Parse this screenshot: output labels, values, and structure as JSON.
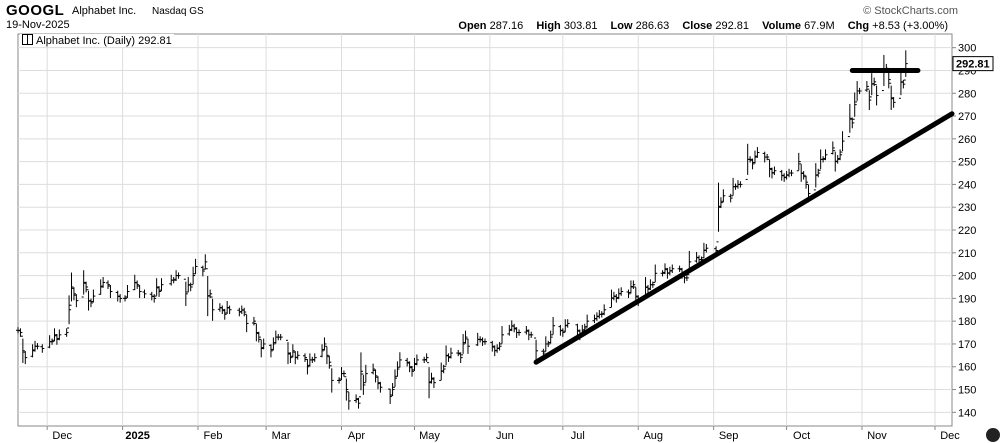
{
  "header": {
    "ticker": "GOOGL",
    "company": "Alphabet Inc.",
    "exchange": "Nasdaq GS",
    "date": "19-Nov-2025",
    "brand": "© StockCharts.com",
    "open_label": "Open",
    "open": "287.16",
    "high_label": "High",
    "high": "303.81",
    "low_label": "Low",
    "low": "286.63",
    "close_label": "Close",
    "close": "292.81",
    "volume_label": "Volume",
    "volume": "67.9M",
    "chg_label": "Chg",
    "chg": "+8.53 (+3.00%)"
  },
  "legend": {
    "text": "Alphabet Inc. (Daily) 292.81"
  },
  "price_tag": "292.81",
  "chart_data": {
    "type": "ohlc",
    "title": "Alphabet Inc. (Daily) 292.81",
    "y_ticks": [
      140,
      150,
      160,
      170,
      180,
      190,
      200,
      210,
      220,
      230,
      240,
      250,
      260,
      270,
      280,
      290,
      300
    ],
    "ylim": [
      134,
      306
    ],
    "x_ticks": [
      "Dec",
      "2025",
      "Feb",
      "Mar",
      "Apr",
      "May",
      "Jun",
      "Jul",
      "Aug",
      "Sep",
      "Oct",
      "Nov",
      "Dec"
    ],
    "xlim": [
      "2024-11-19",
      "2025-12-08"
    ],
    "series": [
      {
        "values": [
          [
            "2024-11-19",
            176
          ],
          [
            "2024-11-20",
            175
          ],
          [
            "2024-11-21",
            167
          ],
          [
            "2024-11-22",
            164
          ],
          [
            "2024-11-25",
            167
          ],
          [
            "2024-11-26",
            169
          ],
          [
            "2024-11-27",
            169
          ],
          [
            "2024-11-29",
            168
          ],
          [
            "2024-12-02",
            171
          ],
          [
            "2024-12-03",
            171
          ],
          [
            "2024-12-04",
            174
          ],
          [
            "2024-12-05",
            172
          ],
          [
            "2024-12-06",
            174
          ],
          [
            "2024-12-09",
            175
          ],
          [
            "2024-12-10",
            185
          ],
          [
            "2024-12-11",
            195
          ],
          [
            "2024-12-12",
            192
          ],
          [
            "2024-12-13",
            189
          ],
          [
            "2024-12-16",
            197
          ],
          [
            "2024-12-17",
            195
          ],
          [
            "2024-12-18",
            189
          ],
          [
            "2024-12-19",
            188
          ],
          [
            "2024-12-20",
            191
          ],
          [
            "2024-12-23",
            195
          ],
          [
            "2024-12-24",
            197
          ],
          [
            "2024-12-26",
            196
          ],
          [
            "2024-12-27",
            193
          ],
          [
            "2024-12-30",
            191
          ],
          [
            "2024-12-31",
            190
          ],
          [
            "2025-01-02",
            190
          ],
          [
            "2025-01-03",
            193
          ],
          [
            "2025-01-06",
            197
          ],
          [
            "2025-01-07",
            196
          ],
          [
            "2025-01-08",
            193
          ],
          [
            "2025-01-10",
            192
          ],
          [
            "2025-01-13",
            191
          ],
          [
            "2025-01-14",
            190
          ],
          [
            "2025-01-15",
            195
          ],
          [
            "2025-01-16",
            193
          ],
          [
            "2025-01-17",
            196
          ],
          [
            "2025-01-21",
            198
          ],
          [
            "2025-01-22",
            198
          ],
          [
            "2025-01-23",
            200
          ],
          [
            "2025-01-24",
            200
          ],
          [
            "2025-01-27",
            192
          ],
          [
            "2025-01-28",
            196
          ],
          [
            "2025-01-29",
            195
          ],
          [
            "2025-01-30",
            200
          ],
          [
            "2025-01-31",
            204
          ],
          [
            "2025-02-03",
            202
          ],
          [
            "2025-02-04",
            206
          ],
          [
            "2025-02-05",
            191
          ],
          [
            "2025-02-06",
            192
          ],
          [
            "2025-02-07",
            185
          ],
          [
            "2025-02-10",
            186
          ],
          [
            "2025-02-11",
            185
          ],
          [
            "2025-02-12",
            183
          ],
          [
            "2025-02-13",
            186
          ],
          [
            "2025-02-14",
            185
          ],
          [
            "2025-02-18",
            184
          ],
          [
            "2025-02-19",
            185
          ],
          [
            "2025-02-20",
            184
          ],
          [
            "2025-02-21",
            179
          ],
          [
            "2025-02-24",
            180
          ],
          [
            "2025-02-25",
            175
          ],
          [
            "2025-02-26",
            173
          ],
          [
            "2025-02-27",
            168
          ],
          [
            "2025-02-28",
            170
          ],
          [
            "2025-03-03",
            167
          ],
          [
            "2025-03-04",
            170
          ],
          [
            "2025-03-05",
            173
          ],
          [
            "2025-03-06",
            173
          ],
          [
            "2025-03-07",
            173
          ],
          [
            "2025-03-10",
            166
          ],
          [
            "2025-03-11",
            164
          ],
          [
            "2025-03-12",
            167
          ],
          [
            "2025-03-13",
            164
          ],
          [
            "2025-03-14",
            165
          ],
          [
            "2025-03-17",
            164
          ],
          [
            "2025-03-18",
            160
          ],
          [
            "2025-03-19",
            163
          ],
          [
            "2025-03-20",
            163
          ],
          [
            "2025-03-21",
            164
          ],
          [
            "2025-03-24",
            167
          ],
          [
            "2025-03-25",
            170
          ],
          [
            "2025-03-26",
            165
          ],
          [
            "2025-03-27",
            162
          ],
          [
            "2025-03-28",
            154
          ],
          [
            "2025-03-31",
            154
          ],
          [
            "2025-04-01",
            157
          ],
          [
            "2025-04-02",
            157
          ],
          [
            "2025-04-03",
            150
          ],
          [
            "2025-04-04",
            145
          ],
          [
            "2025-04-07",
            146
          ],
          [
            "2025-04-08",
            144
          ],
          [
            "2025-04-09",
            158
          ],
          [
            "2025-04-10",
            152
          ],
          [
            "2025-04-11",
            157
          ],
          [
            "2025-04-14",
            159
          ],
          [
            "2025-04-15",
            156
          ],
          [
            "2025-04-16",
            153
          ],
          [
            "2025-04-17",
            151
          ],
          [
            "2025-04-21",
            147
          ],
          [
            "2025-04-22",
            150
          ],
          [
            "2025-04-23",
            155
          ],
          [
            "2025-04-24",
            159
          ],
          [
            "2025-04-25",
            163
          ],
          [
            "2025-04-28",
            162
          ],
          [
            "2025-04-29",
            160
          ],
          [
            "2025-04-30",
            158
          ],
          [
            "2025-05-01",
            161
          ],
          [
            "2025-05-02",
            163
          ],
          [
            "2025-05-05",
            163
          ],
          [
            "2025-05-06",
            164
          ],
          [
            "2025-05-07",
            153
          ],
          [
            "2025-05-08",
            155
          ],
          [
            "2025-05-09",
            153
          ],
          [
            "2025-05-12",
            158
          ],
          [
            "2025-05-13",
            159
          ],
          [
            "2025-05-14",
            165
          ],
          [
            "2025-05-15",
            164
          ],
          [
            "2025-05-16",
            166
          ],
          [
            "2025-05-19",
            166
          ],
          [
            "2025-05-20",
            164
          ],
          [
            "2025-05-21",
            170
          ],
          [
            "2025-05-22",
            173
          ],
          [
            "2025-05-23",
            169
          ],
          [
            "2025-05-27",
            172
          ],
          [
            "2025-05-28",
            172
          ],
          [
            "2025-05-29",
            171
          ],
          [
            "2025-05-30",
            171
          ],
          [
            "2025-06-02",
            169
          ],
          [
            "2025-06-03",
            167
          ],
          [
            "2025-06-04",
            168
          ],
          [
            "2025-06-05",
            169
          ],
          [
            "2025-06-06",
            174
          ],
          [
            "2025-06-09",
            176
          ],
          [
            "2025-06-10",
            178
          ],
          [
            "2025-06-11",
            177
          ],
          [
            "2025-06-12",
            175
          ],
          [
            "2025-06-13",
            175
          ],
          [
            "2025-06-16",
            176
          ],
          [
            "2025-06-17",
            174
          ],
          [
            "2025-06-18",
            174
          ],
          [
            "2025-06-20",
            167
          ],
          [
            "2025-06-23",
            166
          ],
          [
            "2025-06-24",
            170
          ],
          [
            "2025-06-25",
            170
          ],
          [
            "2025-06-26",
            173
          ],
          [
            "2025-06-27",
            178
          ],
          [
            "2025-06-30",
            176
          ],
          [
            "2025-07-01",
            175
          ],
          [
            "2025-07-02",
            178
          ],
          [
            "2025-07-03",
            179
          ],
          [
            "2025-07-07",
            176
          ],
          [
            "2025-07-08",
            174
          ],
          [
            "2025-07-09",
            176
          ],
          [
            "2025-07-10",
            177
          ],
          [
            "2025-07-11",
            180
          ],
          [
            "2025-07-14",
            181
          ],
          [
            "2025-07-15",
            182
          ],
          [
            "2025-07-16",
            183
          ],
          [
            "2025-07-17",
            183
          ],
          [
            "2025-07-18",
            185
          ],
          [
            "2025-07-21",
            190
          ],
          [
            "2025-07-22",
            191
          ],
          [
            "2025-07-23",
            190
          ],
          [
            "2025-07-24",
            192
          ],
          [
            "2025-07-25",
            193
          ],
          [
            "2025-07-28",
            192
          ],
          [
            "2025-07-29",
            195
          ],
          [
            "2025-07-30",
            196
          ],
          [
            "2025-07-31",
            191
          ],
          [
            "2025-08-01",
            189
          ],
          [
            "2025-08-04",
            195
          ],
          [
            "2025-08-05",
            194
          ],
          [
            "2025-08-06",
            196
          ],
          [
            "2025-08-07",
            196
          ],
          [
            "2025-08-08",
            201
          ],
          [
            "2025-08-11",
            201
          ],
          [
            "2025-08-12",
            203
          ],
          [
            "2025-08-13",
            201
          ],
          [
            "2025-08-14",
            202
          ],
          [
            "2025-08-15",
            203
          ],
          [
            "2025-08-18",
            203
          ],
          [
            "2025-08-19",
            201
          ],
          [
            "2025-08-20",
            199
          ],
          [
            "2025-08-21",
            199
          ],
          [
            "2025-08-22",
            206
          ],
          [
            "2025-08-25",
            208
          ],
          [
            "2025-08-26",
            207
          ],
          [
            "2025-08-27",
            207
          ],
          [
            "2025-08-28",
            211
          ],
          [
            "2025-08-29",
            212
          ],
          [
            "2025-09-02",
            211
          ],
          [
            "2025-09-03",
            230
          ],
          [
            "2025-09-04",
            232
          ],
          [
            "2025-09-05",
            235
          ],
          [
            "2025-09-08",
            234
          ],
          [
            "2025-09-09",
            239
          ],
          [
            "2025-09-10",
            239
          ],
          [
            "2025-09-11",
            240
          ],
          [
            "2025-09-12",
            240
          ],
          [
            "2025-09-15",
            251
          ],
          [
            "2025-09-16",
            251
          ],
          [
            "2025-09-17",
            249
          ],
          [
            "2025-09-18",
            252
          ],
          [
            "2025-09-19",
            254
          ],
          [
            "2025-09-22",
            252
          ],
          [
            "2025-09-23",
            252
          ],
          [
            "2025-09-24",
            247
          ],
          [
            "2025-09-25",
            245
          ],
          [
            "2025-09-26",
            246
          ],
          [
            "2025-09-29",
            244
          ],
          [
            "2025-09-30",
            243
          ],
          [
            "2025-10-01",
            244
          ],
          [
            "2025-10-02",
            245
          ],
          [
            "2025-10-03",
            245
          ],
          [
            "2025-10-06",
            250
          ],
          [
            "2025-10-07",
            245
          ],
          [
            "2025-10-08",
            244
          ],
          [
            "2025-10-09",
            241
          ],
          [
            "2025-10-10",
            236
          ],
          [
            "2025-10-13",
            244
          ],
          [
            "2025-10-14",
            245
          ],
          [
            "2025-10-15",
            251
          ],
          [
            "2025-10-16",
            251
          ],
          [
            "2025-10-17",
            253
          ],
          [
            "2025-10-20",
            256
          ],
          [
            "2025-10-21",
            250
          ],
          [
            "2025-10-22",
            251
          ],
          [
            "2025-10-23",
            253
          ],
          [
            "2025-10-24",
            259
          ],
          [
            "2025-10-27",
            269
          ],
          [
            "2025-10-28",
            267
          ],
          [
            "2025-10-29",
            275
          ],
          [
            "2025-10-30",
            281
          ],
          [
            "2025-10-31",
            281
          ],
          [
            "2025-11-03",
            283
          ],
          [
            "2025-11-04",
            277
          ],
          [
            "2025-11-05",
            284
          ],
          [
            "2025-11-06",
            285
          ],
          [
            "2025-11-07",
            279
          ],
          [
            "2025-11-10",
            290
          ],
          [
            "2025-11-11",
            291
          ],
          [
            "2025-11-12",
            286
          ],
          [
            "2025-11-13",
            278
          ],
          [
            "2025-11-14",
            276
          ],
          [
            "2025-11-17",
            285
          ],
          [
            "2025-11-18",
            284
          ],
          [
            "2025-11-19",
            293
          ]
        ]
      }
    ],
    "annotations": [
      {
        "type": "trendline",
        "from": [
          "2025-06-20",
          162
        ],
        "to": [
          "2025-12-08",
          271
        ]
      },
      {
        "type": "horizontal",
        "from": [
          "2025-10-28",
          290
        ],
        "to": [
          "2025-11-24",
          290
        ]
      }
    ]
  },
  "colors": {
    "bar": "#000000",
    "grid": "#dddddd",
    "trend": "#000000",
    "axis": "#888888"
  }
}
